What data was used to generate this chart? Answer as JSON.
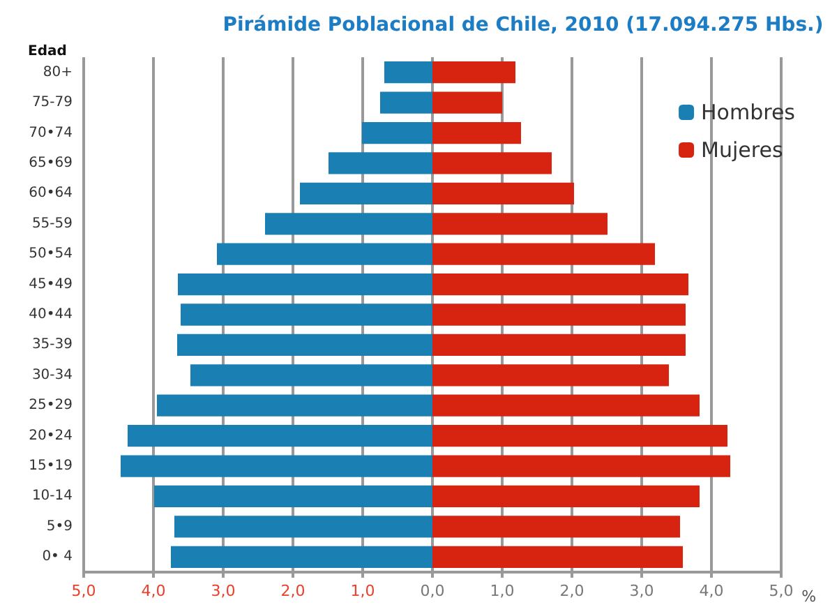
{
  "chart_data": {
    "type": "bar",
    "orientation": "horizontal",
    "title": "Pirámide Poblacional de Chile, 2010 (17.094.275 Hbs.)",
    "ylabel": "Edad",
    "xlabel": "%",
    "categories": [
      "80+",
      "75-79",
      "70•74",
      "65•69",
      "60•64",
      "55-59",
      "50•54",
      "45•49",
      "40•44",
      "35-39",
      "30-34",
      "25•29",
      "20•24",
      "15•19",
      "10-14",
      "5•9",
      "0• 4"
    ],
    "series": [
      {
        "name": "Hombres",
        "color": "#1a80b4",
        "values": [
          -0.69,
          -0.75,
          -1.01,
          -1.49,
          -1.9,
          -2.4,
          -3.09,
          -3.65,
          -3.61,
          -3.66,
          -3.47,
          -3.95,
          -4.37,
          -4.47,
          -3.99,
          -3.7,
          -3.75
        ]
      },
      {
        "name": "Mujeres",
        "color": "#d62410",
        "values": [
          1.19,
          1.0,
          1.27,
          1.71,
          2.03,
          2.51,
          3.19,
          3.67,
          3.63,
          3.63,
          3.39,
          3.83,
          4.23,
          4.27,
          3.83,
          3.55,
          3.59
        ]
      }
    ],
    "xlim": [
      -5,
      5
    ],
    "xticks": [
      {
        "value": -5,
        "label": "5,0"
      },
      {
        "value": -4,
        "label": "4,0"
      },
      {
        "value": -3,
        "label": "3,0"
      },
      {
        "value": -2,
        "label": "2,0"
      },
      {
        "value": -1,
        "label": "1,0"
      },
      {
        "value": 0,
        "label": "0,0"
      },
      {
        "value": 1,
        "label": "1,0"
      },
      {
        "value": 2,
        "label": "2,0"
      },
      {
        "value": 3,
        "label": "3,0"
      },
      {
        "value": 4,
        "label": "4,0"
      },
      {
        "value": 5,
        "label": "5,0"
      }
    ],
    "grid": "x",
    "legend": "top right",
    "stacked": true
  }
}
